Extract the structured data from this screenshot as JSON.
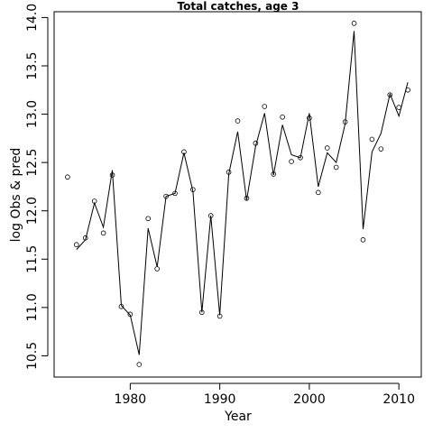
{
  "chart_data": {
    "type": "scatter",
    "title": "Total catches, age 3",
    "xlabel": "Year",
    "ylabel": "log Obs & pred",
    "xlim": [
      1971.5,
      2012.5
    ],
    "ylim": [
      10.28,
      14.06
    ],
    "grid": false,
    "x_ticks": [
      1980,
      1990,
      2000,
      2010
    ],
    "y_ticks": [
      10.5,
      11.0,
      11.5,
      12.0,
      12.5,
      13.0,
      13.5,
      14.0
    ],
    "y_tick_labels": [
      "10.5",
      "11.0",
      "11.5",
      "12.0",
      "12.5",
      "13.0",
      "13.5",
      "14.0"
    ],
    "series": [
      {
        "style": "points",
        "x": [
          1973,
          1974,
          1975,
          1976,
          1977,
          1978,
          1979,
          1980,
          1981,
          1982,
          1983,
          1984,
          1985,
          1986,
          1987,
          1988,
          1989,
          1990,
          1991,
          1992,
          1993,
          1994,
          1995,
          1996,
          1997,
          1998,
          1999,
          2000,
          2001,
          2002,
          2003,
          2004,
          2005,
          2006,
          2007,
          2008,
          2009,
          2010,
          2011
        ],
        "y": [
          12.35,
          11.65,
          11.72,
          12.1,
          11.77,
          12.37,
          11.01,
          10.93,
          10.41,
          11.92,
          11.4,
          12.15,
          12.18,
          12.61,
          12.22,
          10.95,
          11.95,
          10.91,
          12.4,
          12.93,
          12.13,
          12.7,
          13.08,
          12.38,
          12.97,
          12.51,
          12.55,
          12.96,
          12.19,
          12.65,
          12.45,
          12.92,
          13.94,
          11.7,
          12.74,
          12.64,
          13.2,
          13.07,
          13.25
        ]
      },
      {
        "style": "line",
        "x": [
          1974,
          1975,
          1976,
          1977,
          1978,
          1979,
          1980,
          1981,
          1982,
          1983,
          1984,
          1985,
          1986,
          1987,
          1988,
          1989,
          1990,
          1991,
          1992,
          1993,
          1994,
          1995,
          1996,
          1997,
          1998,
          1999,
          2000,
          2001,
          2002,
          2003,
          2004,
          2005,
          2006,
          2007,
          2008,
          2009,
          2010,
          2011
        ],
        "y": [
          11.6,
          11.7,
          12.08,
          11.83,
          12.42,
          11.02,
          10.92,
          10.51,
          11.82,
          11.42,
          12.15,
          12.18,
          12.6,
          12.2,
          10.95,
          11.95,
          10.92,
          12.38,
          12.82,
          12.11,
          12.67,
          13.01,
          12.37,
          12.89,
          12.58,
          12.55,
          13.01,
          12.25,
          12.6,
          12.5,
          12.9,
          13.86,
          11.81,
          12.61,
          12.8,
          13.21,
          12.98,
          13.33
        ]
      }
    ]
  }
}
